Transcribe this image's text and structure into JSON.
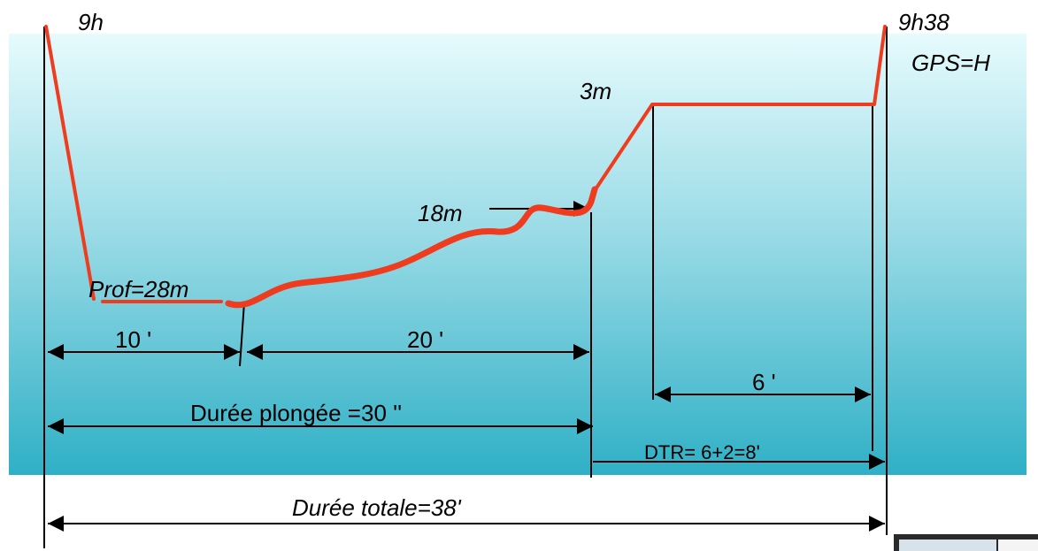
{
  "labels": {
    "start_time": "9h",
    "end_time": "9h38",
    "gps": "GPS=H",
    "stop_depth": "3m",
    "mid_depth": "18m",
    "max_depth": "Prof=28m",
    "bottom_time": "10 '",
    "ascent_time": "20 '",
    "stop_time": "6 '",
    "dive_duration": "Durée plongée =30 ''",
    "dtr": "DTR= 6+2=8'",
    "total_duration": "Durée totale=38'"
  }
}
